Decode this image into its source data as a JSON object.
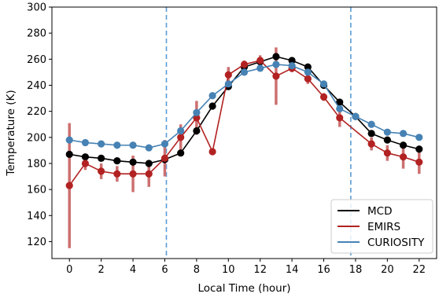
{
  "chart_data": {
    "type": "line",
    "title": "",
    "xlabel": "Local Time (hour)",
    "ylabel": "Temperature (K)",
    "xlim": [
      -1.1,
      23.1
    ],
    "ylim": [
      107,
      300
    ],
    "x_ticks": [
      0,
      2,
      4,
      6,
      8,
      10,
      12,
      14,
      16,
      18,
      20,
      22
    ],
    "y_ticks": [
      120,
      140,
      160,
      180,
      200,
      220,
      240,
      260,
      280,
      300
    ],
    "grid": false,
    "legend_position": "lower right",
    "vertical_lines": [
      {
        "x": 6.1,
        "style": "dashed",
        "color": "#5b9bd5"
      },
      {
        "x": 17.7,
        "style": "dashed",
        "color": "#5b9bd5"
      }
    ],
    "series": [
      {
        "name": "MCD",
        "color": "#000000",
        "x": [
          0,
          1,
          2,
          3,
          4,
          5,
          6,
          7,
          8,
          9,
          10,
          11,
          12,
          13,
          14,
          15,
          16,
          17,
          18,
          19,
          20,
          21,
          22
        ],
        "y": [
          187,
          185,
          184,
          182,
          181,
          180,
          183,
          188,
          205,
          224,
          239,
          254,
          258,
          262,
          259,
          254,
          240,
          227,
          216,
          203,
          198,
          194,
          191
        ]
      },
      {
        "name": "EMIRS",
        "color": "#b22222",
        "errcolor": "#cd7070",
        "x": [
          0,
          1,
          2,
          3,
          4,
          5,
          6,
          7,
          8,
          9,
          10,
          11,
          12,
          13,
          14,
          15,
          16,
          17,
          19,
          20,
          21,
          22
        ],
        "y": [
          163,
          180,
          174,
          172,
          172,
          172,
          184,
          200,
          215,
          189,
          248,
          256,
          259,
          247,
          253,
          245,
          231,
          215,
          195,
          188,
          185,
          181
        ],
        "err": [
          48,
          5,
          6,
          6,
          14,
          10,
          14,
          10,
          13,
          0,
          6,
          3,
          4,
          22,
          3,
          4,
          3,
          7,
          5,
          6,
          9,
          9
        ]
      },
      {
        "name": "CURIOSITY",
        "color": "#4682b4",
        "x": [
          0,
          1,
          2,
          3,
          4,
          5,
          6,
          7,
          8,
          9,
          10,
          11,
          12,
          13,
          14,
          15,
          16,
          17,
          18,
          19,
          20,
          21,
          22
        ],
        "y": [
          198,
          196,
          195,
          194,
          194,
          192,
          195,
          205,
          219,
          232,
          241,
          250,
          253,
          256,
          255,
          250,
          241,
          222,
          216,
          210,
          204,
          203,
          200
        ]
      }
    ]
  }
}
